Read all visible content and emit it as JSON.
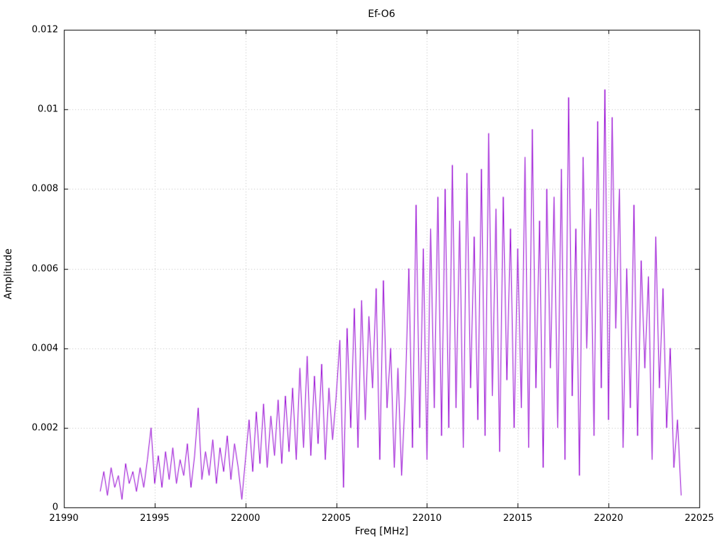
{
  "page": {
    "background_color": "#ffffff",
    "grid_color": "#c0c0c0",
    "border_color": "#000000",
    "text_color": "#000000"
  },
  "chart_data": {
    "type": "line",
    "title": "Ef-O6",
    "xlabel": "Freq [MHz]",
    "ylabel": "Amplitude",
    "xlim": [
      21990,
      22025
    ],
    "ylim": [
      0,
      0.012
    ],
    "x_ticks": [
      21990,
      21995,
      22000,
      22005,
      22010,
      22015,
      22020,
      22025
    ],
    "x_tick_labels": [
      "21990",
      "21995",
      "22000",
      "22005",
      "22010",
      "22015",
      "22020",
      "22025"
    ],
    "y_ticks": [
      0,
      0.002,
      0.004,
      0.006,
      0.008,
      0.01,
      0.012
    ],
    "y_tick_labels": [
      "0",
      "0.002",
      "0.004",
      "0.006",
      "0.008",
      "0.01",
      "0.012"
    ],
    "grid": true,
    "grid_style": "dotted",
    "legend": "none",
    "line_color": "#9400d3",
    "series": [
      {
        "name": "Ef-O6",
        "x_start": 21992.0,
        "x_step": 0.2,
        "values": [
          0.0004,
          0.0009,
          0.0003,
          0.001,
          0.0005,
          0.0008,
          0.0002,
          0.0011,
          0.0006,
          0.0009,
          0.0004,
          0.001,
          0.0005,
          0.0012,
          0.002,
          0.0006,
          0.0013,
          0.0005,
          0.0014,
          0.0007,
          0.0015,
          0.0006,
          0.0012,
          0.0008,
          0.0016,
          0.0005,
          0.0013,
          0.0025,
          0.0007,
          0.0014,
          0.0008,
          0.0017,
          0.0006,
          0.0015,
          0.0009,
          0.0018,
          0.0007,
          0.0016,
          0.001,
          0.0002,
          0.0012,
          0.0022,
          0.0009,
          0.0024,
          0.0011,
          0.0026,
          0.001,
          0.0023,
          0.0013,
          0.0027,
          0.0011,
          0.0028,
          0.0014,
          0.003,
          0.0012,
          0.0035,
          0.0015,
          0.0038,
          0.0013,
          0.0033,
          0.0016,
          0.0036,
          0.0012,
          0.003,
          0.0017,
          0.0028,
          0.0042,
          0.0005,
          0.0045,
          0.002,
          0.005,
          0.0015,
          0.0052,
          0.0022,
          0.0048,
          0.003,
          0.0055,
          0.0012,
          0.0057,
          0.0025,
          0.004,
          0.001,
          0.0035,
          0.0008,
          0.0028,
          0.006,
          0.0015,
          0.0076,
          0.002,
          0.0065,
          0.0012,
          0.007,
          0.0025,
          0.0078,
          0.0018,
          0.008,
          0.002,
          0.0086,
          0.0025,
          0.0072,
          0.0015,
          0.0084,
          0.003,
          0.0068,
          0.0022,
          0.0085,
          0.0018,
          0.0094,
          0.0028,
          0.0075,
          0.0014,
          0.0078,
          0.0032,
          0.007,
          0.002,
          0.0065,
          0.0025,
          0.0088,
          0.0015,
          0.0095,
          0.003,
          0.0072,
          0.001,
          0.008,
          0.0035,
          0.0078,
          0.002,
          0.0085,
          0.0012,
          0.0103,
          0.0028,
          0.007,
          0.0008,
          0.0088,
          0.004,
          0.0075,
          0.0018,
          0.0097,
          0.003,
          0.0105,
          0.0022,
          0.0098,
          0.0045,
          0.008,
          0.0015,
          0.006,
          0.0025,
          0.0076,
          0.0018,
          0.0062,
          0.0035,
          0.0058,
          0.0012,
          0.0068,
          0.003,
          0.0055,
          0.002,
          0.004,
          0.001,
          0.0022,
          0.0003
        ]
      }
    ]
  }
}
